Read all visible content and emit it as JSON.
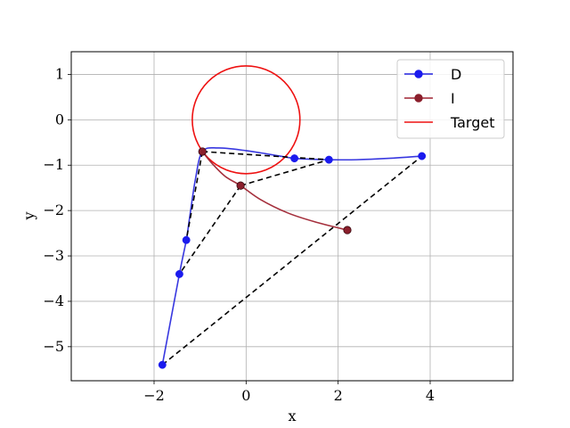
{
  "chart_data": {
    "type": "line",
    "xlabel": "x",
    "ylabel": "y",
    "xlim": [
      -3.8,
      5.8
    ],
    "ylim": [
      -5.75,
      1.5
    ],
    "xticks": [
      -2,
      0,
      2,
      4
    ],
    "xtick_labels": [
      "−2",
      "0",
      "2",
      "4"
    ],
    "yticks": [
      1,
      0,
      -1,
      -2,
      -3,
      -4,
      -5
    ],
    "ytick_labels": [
      "1",
      "0",
      "−1",
      "−2",
      "−3",
      "−4",
      "−5"
    ],
    "grid": true,
    "legend_position": "top-right",
    "series": [
      {
        "name": "D",
        "color": "#2222dd",
        "marker": "circle",
        "markers": [
          [
            -1.82,
            -5.4
          ],
          [
            -1.45,
            -3.4
          ],
          [
            -1.3,
            -2.65
          ],
          [
            -0.95,
            -0.7
          ],
          [
            1.05,
            -0.85
          ],
          [
            1.8,
            -0.88
          ],
          [
            3.82,
            -0.8
          ]
        ],
        "curve": [
          [
            -1.82,
            -5.4
          ],
          [
            -1.45,
            -3.4
          ],
          [
            -1.3,
            -2.65
          ],
          [
            -1.22,
            -2.1
          ],
          [
            -1.1,
            -1.3
          ],
          [
            -0.95,
            -0.7
          ],
          [
            -0.6,
            -0.62
          ],
          [
            0.0,
            -0.68
          ],
          [
            0.5,
            -0.76
          ],
          [
            1.05,
            -0.85
          ],
          [
            1.45,
            -0.87
          ],
          [
            1.8,
            -0.88
          ],
          [
            2.4,
            -0.88
          ],
          [
            3.1,
            -0.85
          ],
          [
            3.82,
            -0.8
          ]
        ]
      },
      {
        "name": "I",
        "color": "#a02533",
        "marker": "circle",
        "markers": [
          [
            -0.95,
            -0.7
          ],
          [
            -0.12,
            -1.45
          ],
          [
            2.2,
            -2.43
          ]
        ],
        "curve": [
          [
            -0.95,
            -0.7
          ],
          [
            -0.75,
            -0.95
          ],
          [
            -0.45,
            -1.25
          ],
          [
            -0.12,
            -1.45
          ],
          [
            0.3,
            -1.75
          ],
          [
            0.9,
            -2.05
          ],
          [
            1.5,
            -2.25
          ],
          [
            2.2,
            -2.43
          ]
        ]
      },
      {
        "name": "Target",
        "color": "#ee1111",
        "shape": "circle",
        "center": [
          0,
          0
        ],
        "radius": 1.17
      }
    ],
    "dashed_lines": [
      [
        [
          -0.95,
          -0.7
        ],
        [
          1.8,
          -0.88
        ]
      ],
      [
        [
          -0.95,
          -0.7
        ],
        [
          -1.3,
          -2.65
        ]
      ],
      [
        [
          -0.12,
          -1.45
        ],
        [
          1.8,
          -0.88
        ]
      ],
      [
        [
          -0.12,
          -1.45
        ],
        [
          -1.45,
          -3.4
        ]
      ],
      [
        [
          -1.82,
          -5.4
        ],
        [
          3.82,
          -0.8
        ]
      ]
    ]
  }
}
